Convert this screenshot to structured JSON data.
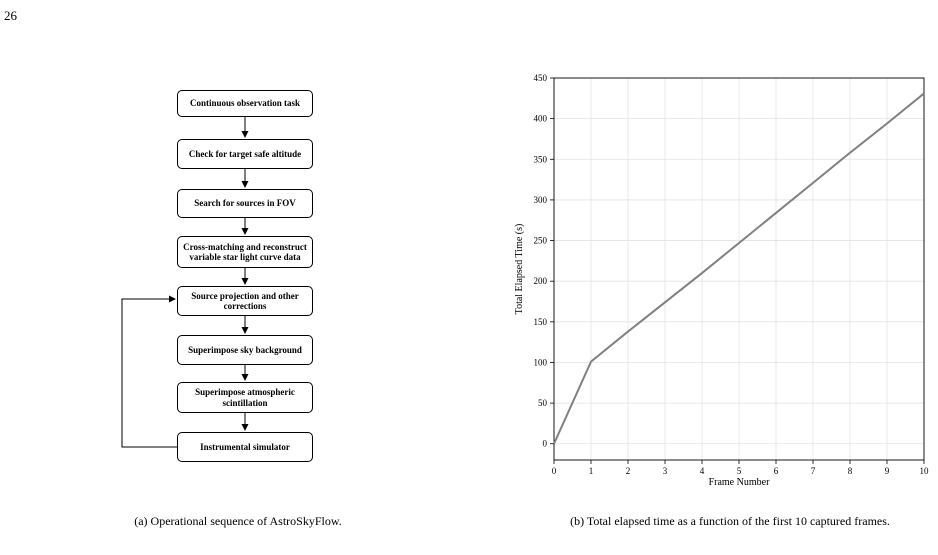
{
  "page_number": "26",
  "flowchart": {
    "steps": [
      "Continuous observation task",
      "Check for target safe altitude",
      "Search for sources in FOV",
      "Cross-matching and reconstruct variable star light curve data",
      "Source projection and other corrections",
      "Superimpose sky background",
      "Superimpose atmospheric scintillation",
      "Instrumental simulator"
    ],
    "feedback": {
      "from": "Instrumental simulator",
      "to": "Source projection and other corrections"
    }
  },
  "captions": {
    "a": "(a) Operational sequence of AstroSkyFlow.",
    "b": "(b) Total elapsed time as a function of the first 10 captured frames."
  },
  "chart_data": {
    "type": "line",
    "xlabel": "Frame Number",
    "ylabel": "Total Elapsed Time (s)",
    "xlim": [
      0,
      10
    ],
    "ylim": [
      -20,
      450
    ],
    "x_ticks": [
      0,
      1,
      2,
      3,
      4,
      5,
      6,
      7,
      8,
      9,
      10
    ],
    "y_ticks": [
      0,
      50,
      100,
      150,
      200,
      250,
      300,
      350,
      400,
      450
    ],
    "grid": true,
    "series": [
      {
        "x": [
          0,
          1,
          2,
          3,
          4,
          5,
          6,
          7,
          8,
          9,
          10
        ],
        "y": [
          0,
          101,
          138,
          174,
          210,
          247,
          284,
          321,
          358,
          394,
          431
        ],
        "color": "#808080"
      }
    ]
  }
}
